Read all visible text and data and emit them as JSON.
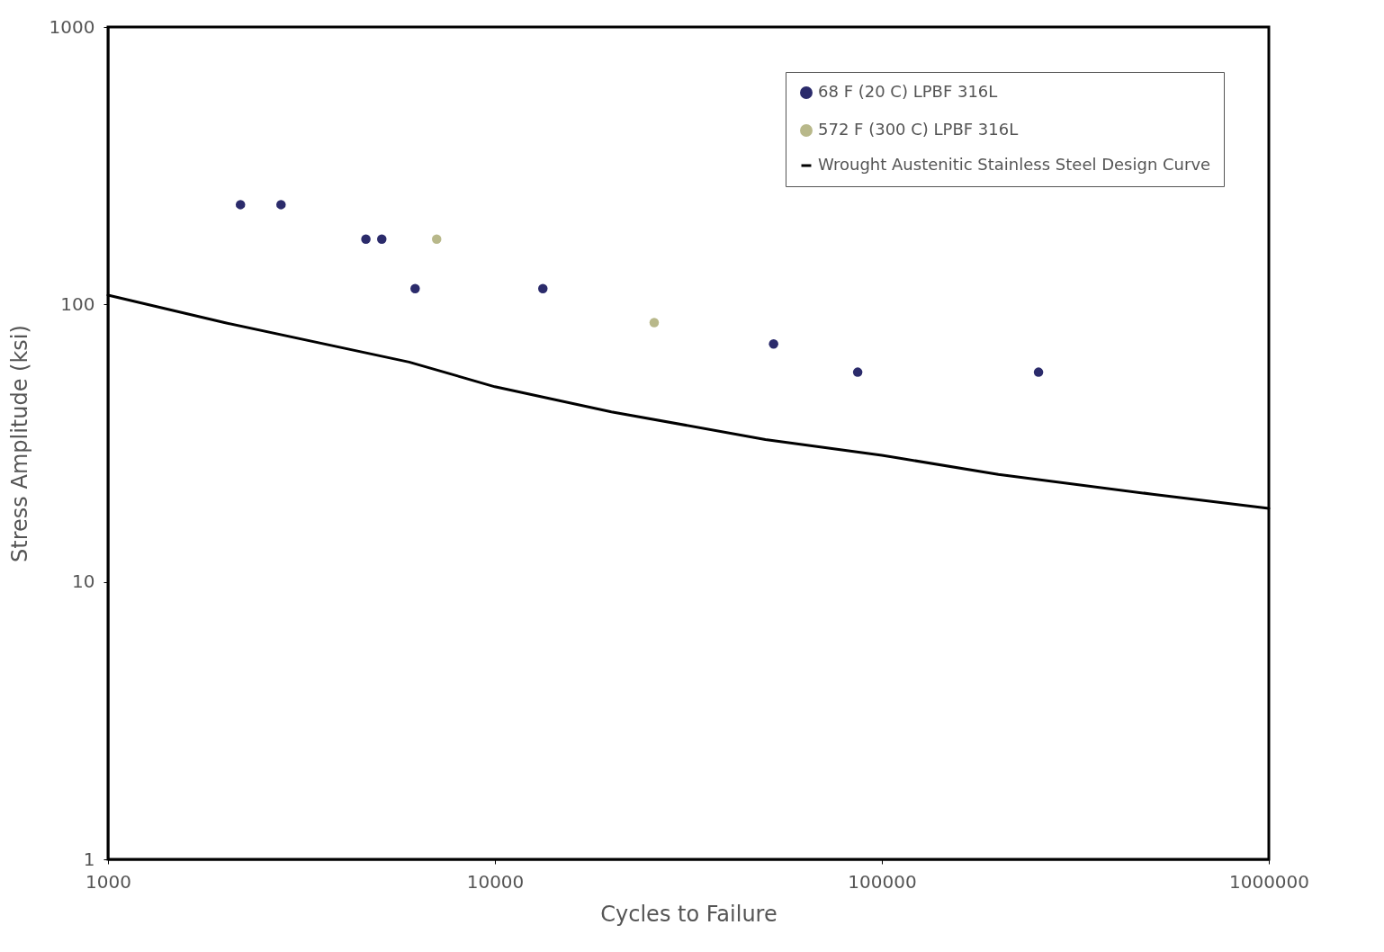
{
  "chart_data": {
    "type": "scatter",
    "xlabel": "Cycles to Failure",
    "ylabel": "Stress Amplitude (ksi)",
    "log": "xy",
    "xlim": [
      1000,
      1000000
    ],
    "xticks": [
      1000,
      10000,
      100000,
      1000000
    ],
    "ylim": [
      1,
      1000
    ],
    "yticks": [
      1,
      10,
      100,
      1000
    ],
    "grid": false,
    "legend": "top right",
    "marker": "circle",
    "series": [
      {
        "name": "68 F (20 C) LPBF 316L",
        "color": "#2b2b6b",
        "x": [
          2200,
          2800,
          4640,
          5100,
          6220,
          13300,
          52500,
          86600,
          254000
        ],
        "values": [
          229,
          229,
          172,
          172,
          114,
          114,
          72,
          57,
          57
        ]
      },
      {
        "name": "572 F (300 C) LPBF 316L",
        "color": "#b8b88a",
        "x": [
          7070,
          25800
        ],
        "values": [
          172,
          86
        ]
      },
      {
        "name": "Wrought Austenitic Stainless Steel Design Curve",
        "type": "line",
        "marker": "none",
        "line_style": "solid",
        "color": "#000000",
        "x": [
          1000,
          2000,
          6000,
          10000,
          20000,
          50000,
          100000,
          200000,
          500000,
          1000000
        ],
        "values": [
          108,
          86,
          62,
          50.5,
          41,
          32.6,
          28.6,
          24.4,
          20.7,
          18.4
        ]
      }
    ]
  }
}
